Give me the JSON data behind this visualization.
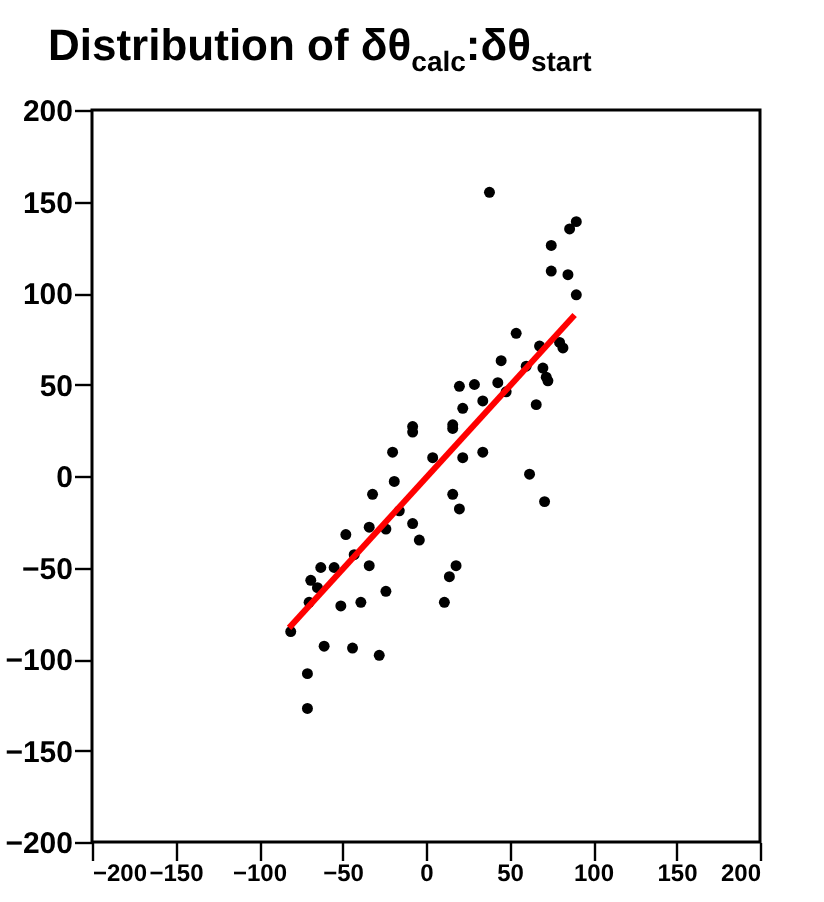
{
  "chart_data": {
    "type": "scatter",
    "title": "Distribution of δθ$_{calc}$:δθ$_{start}$",
    "xlim": [
      -200,
      200
    ],
    "xticks": [
      -200,
      -150,
      -100,
      -50,
      0,
      50,
      100,
      150,
      200
    ],
    "ylim": [
      -200,
      200
    ],
    "yticks": [
      -200,
      -150,
      -100,
      -50,
      0,
      50,
      100,
      150,
      200
    ],
    "grid": false,
    "series": [
      {
        "type": "scatter",
        "color": "#000000",
        "marker": "circle",
        "x": [
          38,
          90,
          86,
          75,
          75,
          85,
          90,
          54,
          80,
          68,
          82,
          45,
          60,
          70,
          29,
          20,
          43,
          72,
          73,
          48,
          22,
          34,
          66,
          16,
          -8,
          -8,
          -20,
          4,
          16,
          22,
          34,
          62,
          -19,
          -32,
          16,
          71,
          20,
          -16,
          -8,
          -34,
          -24,
          -48,
          -4,
          -43,
          -34,
          -63,
          -55,
          18,
          14,
          -69,
          -65,
          -24,
          -51,
          -39,
          -70,
          11,
          -81,
          -61,
          -44,
          -28,
          -71,
          -71
        ],
        "values": [
          155,
          139,
          135,
          126,
          112,
          110,
          99,
          78,
          73,
          71,
          70,
          63,
          60,
          59,
          50,
          49,
          51,
          54,
          52,
          46,
          37,
          41,
          39,
          28,
          27,
          24,
          13,
          10,
          26,
          10,
          13,
          1,
          -3,
          -10,
          -10,
          -14,
          -18,
          -19,
          -26,
          -28,
          -29,
          -32,
          -35,
          -43,
          -49,
          -50,
          -50,
          -49,
          -55,
          -57,
          -61,
          -63,
          -71,
          -69,
          -69,
          -69,
          -85,
          -93,
          -94,
          -98,
          -108,
          -127
        ]
      },
      {
        "type": "line",
        "color": "#ff0000",
        "marker": "none",
        "x": [
          -82,
          89
        ],
        "values": [
          -83,
          88
        ]
      }
    ]
  }
}
